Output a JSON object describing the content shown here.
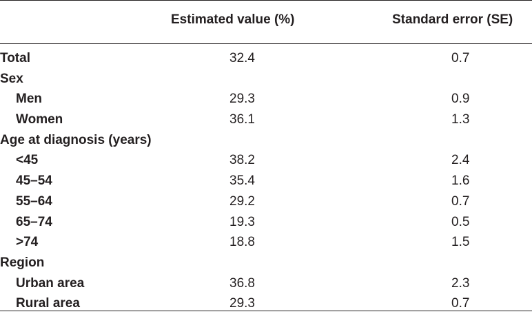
{
  "header": {
    "estimated_value": "Estimated value (%)",
    "standard_error": "Standard error (SE)"
  },
  "rows": [
    {
      "label": "Total",
      "value": "32.4",
      "se": "0.7"
    },
    {
      "label": "Sex",
      "value": "",
      "se": ""
    },
    {
      "label": "Men",
      "value": "29.3",
      "se": "0.9"
    },
    {
      "label": "Women",
      "value": "36.1",
      "se": "1.3"
    },
    {
      "label": "Age at diagnosis (years)",
      "value": "",
      "se": ""
    },
    {
      "label": "<45",
      "value": "38.2",
      "se": "2.4"
    },
    {
      "label": "45–54",
      "value": "35.4",
      "se": "1.6"
    },
    {
      "label": "55–64",
      "value": "29.2",
      "se": "0.7"
    },
    {
      "label": "65–74",
      "value": "19.3",
      "se": "0.5"
    },
    {
      "label": ">74",
      "value": "18.8",
      "se": "1.5"
    },
    {
      "label": "Region",
      "value": "",
      "se": ""
    },
    {
      "label": "Urban area",
      "value": "36.8",
      "se": "2.3"
    },
    {
      "label": "Rural area",
      "value": "29.3",
      "se": "0.7"
    }
  ]
}
